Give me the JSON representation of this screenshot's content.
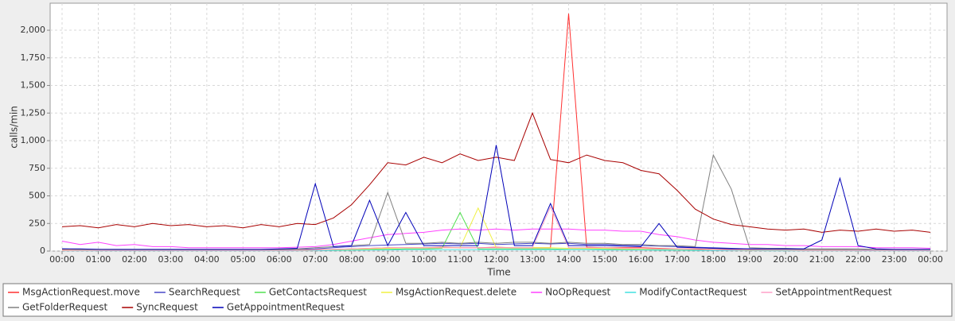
{
  "chart_data": {
    "type": "line",
    "y_label": "calls/min",
    "x_label": "Time",
    "x": [
      0,
      0.5,
      1,
      1.5,
      2,
      2.5,
      3,
      3.5,
      4,
      4.5,
      5,
      5.5,
      6,
      6.5,
      7,
      7.5,
      8,
      8.5,
      9,
      9.5,
      10,
      10.5,
      11,
      11.5,
      12,
      12.5,
      13,
      13.5,
      14,
      14.5,
      15,
      15.5,
      16,
      16.5,
      17,
      17.5,
      18,
      18.5,
      19,
      19.5,
      20,
      20.5,
      21,
      21.5,
      22,
      22.5,
      23,
      23.5,
      24
    ],
    "xlim": [
      -0.33,
      24.46
    ],
    "xticks": [
      {
        "value": 0,
        "label": "00:00"
      },
      {
        "value": 1,
        "label": "01:00"
      },
      {
        "value": 2,
        "label": "02:00"
      },
      {
        "value": 3,
        "label": "03:00"
      },
      {
        "value": 4,
        "label": "04:00"
      },
      {
        "value": 5,
        "label": "05:00"
      },
      {
        "value": 6,
        "label": "06:00"
      },
      {
        "value": 7,
        "label": "07:00"
      },
      {
        "value": 8,
        "label": "08:00"
      },
      {
        "value": 9,
        "label": "09:00"
      },
      {
        "value": 10,
        "label": "10:00"
      },
      {
        "value": 11,
        "label": "11:00"
      },
      {
        "value": 12,
        "label": "12:00"
      },
      {
        "value": 13,
        "label": "13:00"
      },
      {
        "value": 14,
        "label": "14:00"
      },
      {
        "value": 15,
        "label": "15:00"
      },
      {
        "value": 16,
        "label": "16:00"
      },
      {
        "value": 17,
        "label": "17:00"
      },
      {
        "value": 18,
        "label": "18:00"
      },
      {
        "value": 19,
        "label": "19:00"
      },
      {
        "value": 20,
        "label": "20:00"
      },
      {
        "value": 21,
        "label": "21:00"
      },
      {
        "value": 22,
        "label": "22:00"
      },
      {
        "value": 23,
        "label": "23:00"
      },
      {
        "value": 24,
        "label": "00:00"
      }
    ],
    "ylim": [
      0,
      2245
    ],
    "yticks": [
      0,
      250,
      500,
      750,
      {
        "value": 1000,
        "label": "1,000"
      },
      {
        "value": 1250,
        "label": "1,250"
      },
      {
        "value": 1500,
        "label": "1,500"
      },
      {
        "value": 1750,
        "label": "1,750"
      },
      {
        "value": 2000,
        "label": "2,000"
      }
    ],
    "grid": true,
    "legend": "bottom",
    "series": [
      {
        "name": "MsgActionRequest.move",
        "color": "#ff3030",
        "values": [
          10,
          10,
          8,
          8,
          8,
          6,
          6,
          6,
          6,
          6,
          6,
          6,
          8,
          10,
          12,
          15,
          20,
          25,
          30,
          30,
          30,
          35,
          30,
          30,
          35,
          30,
          30,
          30,
          2150,
          35,
          30,
          30,
          30,
          25,
          20,
          20,
          15,
          15,
          12,
          12,
          10,
          10,
          10,
          10,
          8,
          8,
          8,
          8,
          8
        ]
      },
      {
        "name": "SearchRequest",
        "color": "#4848c8",
        "values": [
          20,
          15,
          15,
          12,
          12,
          12,
          10,
          10,
          10,
          10,
          10,
          10,
          12,
          15,
          20,
          30,
          40,
          50,
          55,
          60,
          65,
          70,
          65,
          70,
          60,
          65,
          70,
          65,
          70,
          60,
          60,
          55,
          50,
          45,
          40,
          35,
          30,
          25,
          20,
          20,
          18,
          15,
          15,
          15,
          12,
          12,
          12,
          10,
          10
        ]
      },
      {
        "name": "GetContactsRequest",
        "color": "#50e050",
        "values": [
          5,
          5,
          5,
          5,
          5,
          5,
          5,
          5,
          5,
          5,
          5,
          5,
          5,
          5,
          8,
          10,
          12,
          15,
          15,
          20,
          20,
          25,
          350,
          20,
          20,
          20,
          20,
          20,
          15,
          15,
          15,
          15,
          12,
          12,
          10,
          10,
          8,
          8,
          5,
          5,
          5,
          5,
          5,
          5,
          5,
          5,
          5,
          5,
          5
        ]
      },
      {
        "name": "MsgActionRequest.delete",
        "color": "#f0f040",
        "values": [
          8,
          8,
          8,
          6,
          6,
          6,
          6,
          6,
          6,
          6,
          6,
          6,
          6,
          8,
          10,
          12,
          15,
          20,
          25,
          30,
          30,
          30,
          30,
          390,
          30,
          30,
          30,
          30,
          25,
          25,
          25,
          20,
          20,
          20,
          15,
          15,
          12,
          12,
          10,
          10,
          10,
          8,
          8,
          8,
          8,
          6,
          6,
          6,
          6
        ]
      },
      {
        "name": "NoOpRequest",
        "color": "#ff40ff",
        "values": [
          90,
          60,
          80,
          50,
          60,
          40,
          40,
          30,
          30,
          30,
          30,
          30,
          30,
          35,
          40,
          60,
          90,
          120,
          150,
          160,
          170,
          190,
          200,
          190,
          200,
          190,
          200,
          200,
          200,
          190,
          190,
          180,
          180,
          150,
          130,
          100,
          80,
          70,
          60,
          60,
          50,
          50,
          40,
          40,
          40,
          30,
          30,
          30,
          25
        ]
      },
      {
        "name": "ModifyContactRequest",
        "color": "#40e0e0",
        "values": [
          3,
          3,
          3,
          3,
          3,
          3,
          3,
          3,
          3,
          3,
          3,
          3,
          3,
          3,
          5,
          5,
          8,
          10,
          10,
          12,
          12,
          12,
          12,
          12,
          12,
          12,
          12,
          12,
          12,
          12,
          10,
          10,
          10,
          8,
          8,
          6,
          5,
          5,
          5,
          3,
          3,
          3,
          3,
          3,
          3,
          3,
          3,
          3,
          3
        ]
      },
      {
        "name": "SetAppointmentRequest",
        "color": "#ffa0c8",
        "values": [
          5,
          5,
          5,
          5,
          5,
          5,
          5,
          5,
          5,
          5,
          5,
          5,
          5,
          5,
          10,
          15,
          20,
          25,
          30,
          30,
          30,
          30,
          30,
          30,
          30,
          30,
          30,
          400,
          30,
          30,
          30,
          25,
          25,
          20,
          20,
          15,
          12,
          10,
          8,
          8,
          8,
          6,
          6,
          6,
          5,
          5,
          5,
          5,
          5
        ]
      },
      {
        "name": "GetFolderRequest",
        "color": "#808080",
        "values": [
          20,
          15,
          15,
          15,
          15,
          15,
          15,
          15,
          15,
          15,
          15,
          15,
          15,
          20,
          30,
          40,
          50,
          60,
          530,
          70,
          70,
          80,
          70,
          80,
          70,
          80,
          80,
          70,
          80,
          70,
          70,
          60,
          60,
          50,
          50,
          40,
          870,
          560,
          30,
          25,
          25,
          20,
          20,
          20,
          20,
          15,
          15,
          15,
          15
        ]
      },
      {
        "name": "SyncRequest",
        "color": "#a80000",
        "values": [
          220,
          230,
          210,
          240,
          220,
          250,
          230,
          240,
          220,
          230,
          210,
          240,
          220,
          250,
          240,
          300,
          420,
          600,
          800,
          780,
          850,
          800,
          880,
          820,
          850,
          820,
          1250,
          830,
          800,
          870,
          820,
          800,
          730,
          700,
          550,
          380,
          290,
          240,
          220,
          200,
          190,
          200,
          170,
          190,
          180,
          200,
          180,
          190,
          170
        ]
      },
      {
        "name": "GetAppointmentRequest",
        "color": "#0000b8",
        "values": [
          20,
          20,
          15,
          15,
          15,
          15,
          15,
          15,
          15,
          15,
          15,
          15,
          20,
          25,
          610,
          40,
          50,
          460,
          50,
          350,
          50,
          50,
          50,
          50,
          960,
          50,
          50,
          430,
          50,
          50,
          50,
          45,
          40,
          250,
          35,
          30,
          25,
          20,
          20,
          20,
          20,
          20,
          100,
          660,
          50,
          20,
          15,
          15,
          15
        ]
      }
    ]
  }
}
